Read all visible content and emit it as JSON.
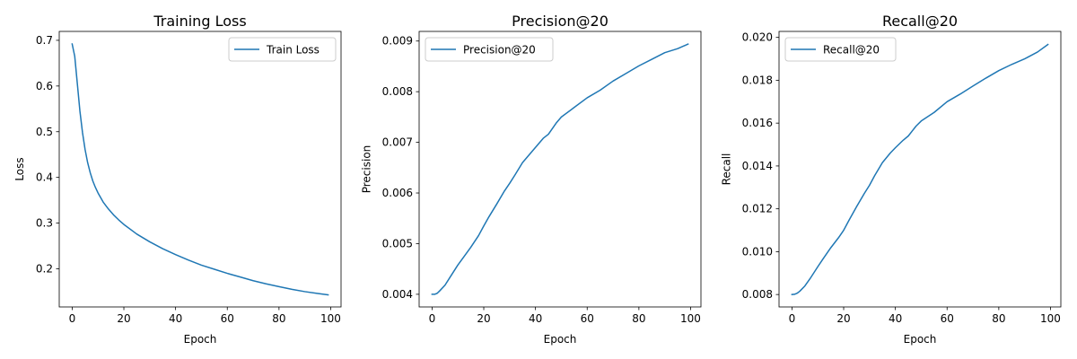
{
  "chart_data": [
    {
      "type": "line",
      "title": "Training Loss",
      "xlabel": "Epoch",
      "ylabel": "Loss",
      "xlim": [
        -5,
        104
      ],
      "ylim": [
        0.1165,
        0.7195
      ],
      "xticks": [
        0,
        20,
        40,
        60,
        80,
        100
      ],
      "xtick_labels": [
        "0",
        "20",
        "40",
        "60",
        "80",
        "100"
      ],
      "yticks": [
        0.2,
        0.3,
        0.4,
        0.5,
        0.6,
        0.7
      ],
      "ytick_labels": [
        "0.2",
        "0.3",
        "0.4",
        "0.5",
        "0.6",
        "0.7"
      ],
      "grid": false,
      "legend_position": "top-right",
      "color": "#1f77b4",
      "series": [
        {
          "name": "Train Loss",
          "x": [
            0,
            1,
            2,
            3,
            4,
            5,
            6,
            7,
            8,
            9,
            10,
            12,
            14,
            16,
            18,
            20,
            25,
            30,
            35,
            40,
            45,
            50,
            55,
            60,
            65,
            70,
            75,
            80,
            85,
            90,
            95,
            99
          ],
          "y": [
            0.692,
            0.665,
            0.605,
            0.545,
            0.498,
            0.461,
            0.432,
            0.41,
            0.392,
            0.378,
            0.366,
            0.346,
            0.331,
            0.318,
            0.307,
            0.297,
            0.276,
            0.259,
            0.244,
            0.231,
            0.219,
            0.208,
            0.199,
            0.19,
            0.182,
            0.174,
            0.167,
            0.161,
            0.155,
            0.15,
            0.146,
            0.143
          ]
        }
      ]
    },
    {
      "type": "line",
      "title": "Precision@20",
      "xlabel": "Epoch",
      "ylabel": "Precision",
      "xlim": [
        -5,
        104
      ],
      "ylim": [
        0.00375,
        0.00919
      ],
      "xticks": [
        0,
        20,
        40,
        60,
        80,
        100
      ],
      "xtick_labels": [
        "0",
        "20",
        "40",
        "60",
        "80",
        "100"
      ],
      "yticks": [
        0.004,
        0.005,
        0.006,
        0.007,
        0.008,
        0.009
      ],
      "ytick_labels": [
        "0.004",
        "0.005",
        "0.006",
        "0.007",
        "0.008",
        "0.009"
      ],
      "grid": false,
      "legend_position": "top-left",
      "color": "#1f77b4",
      "series": [
        {
          "name": "Precision@20",
          "x": [
            0,
            1,
            2,
            3,
            5,
            7,
            10,
            12,
            15,
            18,
            20,
            22,
            25,
            28,
            30,
            32,
            35,
            38,
            40,
            43,
            45,
            48,
            50,
            55,
            60,
            65,
            70,
            75,
            80,
            85,
            90,
            95,
            99
          ],
          "y": [
            0.004,
            0.004,
            0.00402,
            0.00407,
            0.00418,
            0.00434,
            0.00458,
            0.00472,
            0.00493,
            0.00516,
            0.00535,
            0.00553,
            0.00578,
            0.00604,
            0.00619,
            0.00635,
            0.0066,
            0.00678,
            0.0069,
            0.00708,
            0.00716,
            0.00738,
            0.0075,
            0.00769,
            0.00788,
            0.00803,
            0.00821,
            0.00836,
            0.00851,
            0.00864,
            0.00877,
            0.00885,
            0.00894
          ]
        }
      ]
    },
    {
      "type": "line",
      "title": "Recall@20",
      "xlabel": "Epoch",
      "ylabel": "Recall",
      "xlim": [
        -5,
        104
      ],
      "ylim": [
        0.00742,
        0.02028
      ],
      "xticks": [
        0,
        20,
        40,
        60,
        80,
        100
      ],
      "xtick_labels": [
        "0",
        "20",
        "40",
        "60",
        "80",
        "100"
      ],
      "yticks": [
        0.008,
        0.01,
        0.012,
        0.014,
        0.016,
        0.018,
        0.02
      ],
      "ytick_labels": [
        "0.008",
        "0.010",
        "0.012",
        "0.014",
        "0.016",
        "0.018",
        "0.020"
      ],
      "grid": false,
      "legend_position": "top-left",
      "color": "#1f77b4",
      "series": [
        {
          "name": "Recall@20",
          "x": [
            0,
            1,
            2,
            3,
            5,
            7,
            10,
            12,
            15,
            18,
            20,
            22,
            25,
            28,
            30,
            32,
            35,
            38,
            40,
            43,
            45,
            48,
            50,
            55,
            60,
            65,
            70,
            75,
            80,
            85,
            90,
            95,
            99
          ],
          "y": [
            0.008,
            0.00801,
            0.00806,
            0.00815,
            0.0084,
            0.00874,
            0.0093,
            0.00966,
            0.01018,
            0.01065,
            0.011,
            0.01145,
            0.0121,
            0.01272,
            0.0131,
            0.01355,
            0.01416,
            0.0146,
            0.01485,
            0.0152,
            0.0154,
            0.01586,
            0.0161,
            0.0165,
            0.017,
            0.01735,
            0.01773,
            0.0181,
            0.01845,
            0.01874,
            0.019,
            0.01932,
            0.01967
          ]
        }
      ]
    }
  ]
}
